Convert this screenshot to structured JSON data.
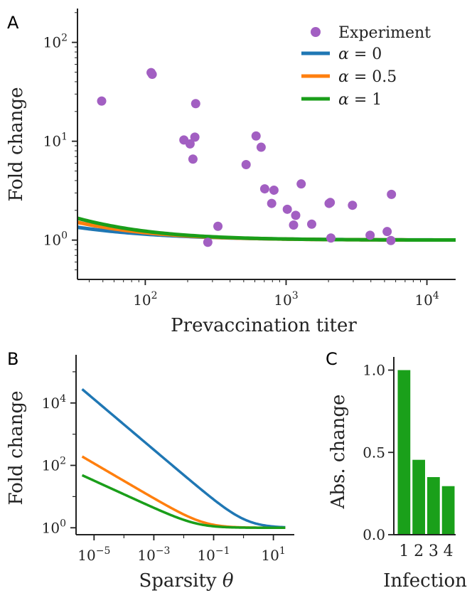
{
  "colors": {
    "alpha0": "#1f77b4",
    "alpha05": "#ff7f0e",
    "alpha1": "#1a9e1a",
    "experiment": "#a25fc2",
    "bar": "#1aa01a",
    "axis": "#222222"
  },
  "chart_data": [
    {
      "panel": "A",
      "type": "scatter",
      "xlabel": "Prevaccination titer",
      "ylabel": "Fold change",
      "xscale": "log",
      "yscale": "log",
      "xlim": [
        33,
        16000
      ],
      "ylim": [
        0.4,
        220
      ],
      "xticks": [
        {
          "value": 100,
          "base": "10",
          "exp": "2"
        },
        {
          "value": 1000,
          "base": "10",
          "exp": "3"
        },
        {
          "value": 10000,
          "base": "10",
          "exp": "4"
        }
      ],
      "yticks": [
        {
          "value": 1,
          "base": "10",
          "exp": "0"
        },
        {
          "value": 10,
          "base": "10",
          "exp": "1"
        },
        {
          "value": 100,
          "base": "10",
          "exp": "2"
        }
      ],
      "legend_position": "top-right",
      "series": [
        {
          "name": "Experiment",
          "kind": "points",
          "color_key": "experiment",
          "points": [
            [
              49,
              25.5
            ],
            [
              110,
              49.5
            ],
            [
              112,
              47.5
            ],
            [
              188,
              10.3
            ],
            [
              208,
              9.4
            ],
            [
              218,
              6.6
            ],
            [
              225,
              11.0
            ],
            [
              228,
              24.0
            ],
            [
              278,
              0.95
            ],
            [
              328,
              1.38
            ],
            [
              520,
              5.8
            ],
            [
              612,
              11.3
            ],
            [
              665,
              8.7
            ],
            [
              705,
              3.3
            ],
            [
              790,
              2.35
            ],
            [
              820,
              3.2
            ],
            [
              1020,
              2.05
            ],
            [
              1130,
              1.42
            ],
            [
              1170,
              1.78
            ],
            [
              1280,
              3.7
            ],
            [
              1520,
              1.45
            ],
            [
              2020,
              2.35
            ],
            [
              2060,
              2.4
            ],
            [
              2080,
              1.05
            ],
            [
              2960,
              2.25
            ],
            [
              3950,
              1.12
            ],
            [
              5220,
              1.22
            ],
            [
              5550,
              0.99
            ],
            [
              5600,
              2.9
            ]
          ]
        },
        {
          "name": "α = 0",
          "label_base": "α",
          "label_rest": " = 0",
          "kind": "curve",
          "color_key": "alpha0",
          "A": 0.12,
          "n": 0.768
        },
        {
          "name": "α = 0.5",
          "label_base": "α",
          "label_rest": " = 0.5",
          "kind": "curve",
          "color_key": "alpha05",
          "A": 0.0636,
          "n": 0.9
        },
        {
          "name": "α = 1",
          "label_base": "α",
          "label_rest": " = 1",
          "kind": "curve",
          "color_key": "alpha1",
          "A": 0.0465,
          "n": 0.955
        }
      ]
    },
    {
      "panel": "B",
      "type": "line",
      "xlabel": "Sparsity θ",
      "xlabel_base": "Sparsity ",
      "xlabel_symbol": "θ",
      "ylabel": "Fold change",
      "xscale": "log",
      "yscale": "log",
      "xlim": [
        2.5e-06,
        50
      ],
      "ylim": [
        0.6,
        350000
      ],
      "xticks": [
        {
          "value": 1e-05,
          "base": "10",
          "exp": "−5"
        },
        {
          "value": 0.001,
          "base": "10",
          "exp": "−3"
        },
        {
          "value": 0.1,
          "base": "10",
          "exp": "−1"
        },
        {
          "value": 10,
          "base": "10",
          "exp": "1"
        }
      ],
      "yticks": [
        {
          "value": 1,
          "base": "10",
          "exp": "0"
        },
        {
          "value": 100,
          "base": "10",
          "exp": "2"
        },
        {
          "value": 10000,
          "base": "10",
          "exp": "4"
        }
      ],
      "x_range": [
        4e-06,
        25
      ],
      "series": [
        {
          "color_key": "alpha0",
          "K": 1.22,
          "n": 0.81
        },
        {
          "color_key": "alpha05",
          "K": 0.048,
          "n": 0.56
        },
        {
          "color_key": "alpha1",
          "K": 0.028,
          "n": 0.438
        }
      ]
    },
    {
      "panel": "C",
      "type": "bar",
      "xlabel": "Infection",
      "ylabel": "Abs. change",
      "ylim": [
        0,
        1.08
      ],
      "categories": [
        "1",
        "2",
        "3",
        "4"
      ],
      "values": [
        1.0,
        0.455,
        0.35,
        0.295
      ],
      "yticks": [
        "0.0",
        "0.5",
        "1.0"
      ]
    }
  ]
}
